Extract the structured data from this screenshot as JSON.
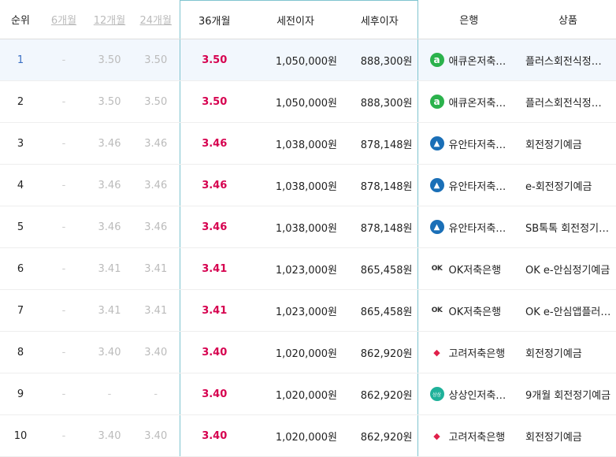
{
  "headers": {
    "rank": "순위",
    "m6": "6개월",
    "m12": "12개월",
    "m24": "24개월",
    "m36": "36개월",
    "pre_tax": "세전이자",
    "post_tax": "세후이자",
    "bank": "은행",
    "product": "상품"
  },
  "rows": [
    {
      "rank": "1",
      "m6": "-",
      "m12": "3.50",
      "m24": "3.50",
      "m36": "3.50",
      "pre": "1,050,000원",
      "post": "888,300원",
      "bank": "애큐온저축…",
      "logo": "acuon-logo-icon",
      "product": "플러스회전식정…"
    },
    {
      "rank": "2",
      "m6": "-",
      "m12": "3.50",
      "m24": "3.50",
      "m36": "3.50",
      "pre": "1,050,000원",
      "post": "888,300원",
      "bank": "애큐온저축…",
      "logo": "acuon-logo-icon",
      "product": "플러스회전식정…"
    },
    {
      "rank": "3",
      "m6": "-",
      "m12": "3.46",
      "m24": "3.46",
      "m36": "3.46",
      "pre": "1,038,000원",
      "post": "878,148원",
      "bank": "유안타저축…",
      "logo": "yuanta-logo-icon",
      "product": "회전정기예금"
    },
    {
      "rank": "4",
      "m6": "-",
      "m12": "3.46",
      "m24": "3.46",
      "m36": "3.46",
      "pre": "1,038,000원",
      "post": "878,148원",
      "bank": "유안타저축…",
      "logo": "yuanta-logo-icon",
      "product": "e-회전정기예금"
    },
    {
      "rank": "5",
      "m6": "-",
      "m12": "3.46",
      "m24": "3.46",
      "m36": "3.46",
      "pre": "1,038,000원",
      "post": "878,148원",
      "bank": "유안타저축…",
      "logo": "yuanta-logo-icon",
      "product": "SB톡톡 회전정기…"
    },
    {
      "rank": "6",
      "m6": "-",
      "m12": "3.41",
      "m24": "3.41",
      "m36": "3.41",
      "pre": "1,023,000원",
      "post": "865,458원",
      "bank": "OK저축은행",
      "logo": "ok-logo-icon",
      "product": "OK e-안심정기예금"
    },
    {
      "rank": "7",
      "m6": "-",
      "m12": "3.41",
      "m24": "3.41",
      "m36": "3.41",
      "pre": "1,023,000원",
      "post": "865,458원",
      "bank": "OK저축은행",
      "logo": "ok-logo-icon",
      "product": "OK e-안심앱플러…"
    },
    {
      "rank": "8",
      "m6": "-",
      "m12": "3.40",
      "m24": "3.40",
      "m36": "3.40",
      "pre": "1,020,000원",
      "post": "862,920원",
      "bank": "고려저축은행",
      "logo": "korea-logo-icon",
      "product": "회전정기예금"
    },
    {
      "rank": "9",
      "m6": "-",
      "m12": "-",
      "m24": "-",
      "m36": "3.40",
      "pre": "1,020,000원",
      "post": "862,920원",
      "bank": "상상인저축…",
      "logo": "sangsangin-logo-icon",
      "product": "9개월 회전정기예금"
    },
    {
      "rank": "10",
      "m6": "-",
      "m12": "3.40",
      "m24": "3.40",
      "m36": "3.40",
      "pre": "1,020,000원",
      "post": "862,920원",
      "bank": "고려저축은행",
      "logo": "korea-logo-icon",
      "product": "회전정기예금"
    }
  ]
}
